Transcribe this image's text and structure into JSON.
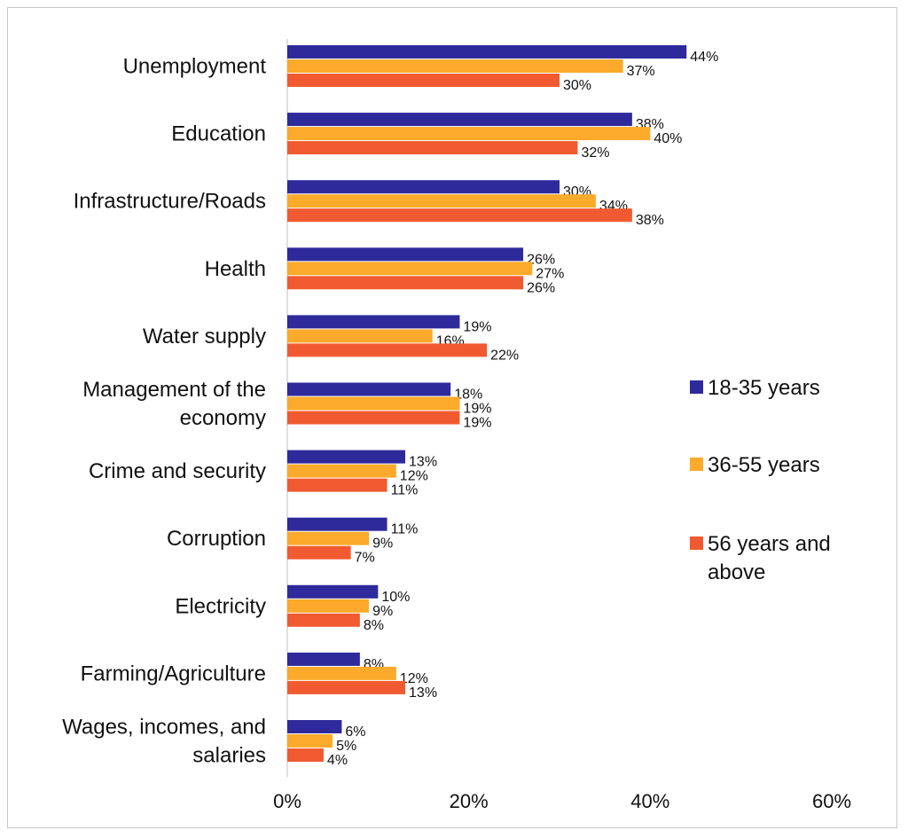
{
  "chart_data": {
    "type": "bar",
    "orientation": "horizontal",
    "title": "",
    "xlabel": "",
    "ylabel": "",
    "xlim": [
      0,
      60
    ],
    "x_ticks": [
      0,
      20,
      40,
      60
    ],
    "x_tick_labels": [
      "0%",
      "20%",
      "40%",
      "60%"
    ],
    "grid": false,
    "legend_position": "right",
    "categories": [
      "Unemployment",
      "Education",
      "Infrastructure/Roads",
      "Health",
      "Water supply",
      "Management of the economy",
      "Crime and security",
      "Corruption",
      "Electricity",
      "Farming/Agriculture",
      "Wages, incomes, and salaries"
    ],
    "category_lines": [
      [
        "Unemployment"
      ],
      [
        "Education"
      ],
      [
        "Infrastructure/Roads"
      ],
      [
        "Health"
      ],
      [
        "Water supply"
      ],
      [
        "Management of the",
        "economy"
      ],
      [
        "Crime and security"
      ],
      [
        "Corruption"
      ],
      [
        "Electricity"
      ],
      [
        "Farming/Agriculture"
      ],
      [
        "Wages, incomes, and",
        "salaries"
      ]
    ],
    "series": [
      {
        "name": "18-35 years",
        "legend_lines": [
          "18-35 years"
        ],
        "color": "#2e2a9c",
        "values": [
          44,
          38,
          30,
          26,
          19,
          18,
          13,
          11,
          10,
          8,
          6
        ],
        "labels": [
          "44%",
          "38%",
          "30%",
          "26%",
          "19%",
          "18%",
          "13%",
          "11%",
          "10%",
          "8%",
          "6%"
        ]
      },
      {
        "name": "36-55 years",
        "legend_lines": [
          "36-55 years"
        ],
        "color": "#fbaa2b",
        "values": [
          37,
          40,
          34,
          27,
          16,
          19,
          12,
          9,
          9,
          12,
          5
        ],
        "labels": [
          "37%",
          "40%",
          "34%",
          "27%",
          "16%",
          "19%",
          "12%",
          "9%",
          "9%",
          "12%",
          "5%"
        ]
      },
      {
        "name": "56 years and above",
        "legend_lines": [
          "56 years and",
          "above"
        ],
        "color": "#f15a30",
        "values": [
          30,
          32,
          38,
          26,
          22,
          19,
          11,
          7,
          8,
          13,
          4
        ],
        "labels": [
          "30%",
          "32%",
          "38%",
          "26%",
          "22%",
          "19%",
          "11%",
          "7%",
          "8%",
          "13%",
          "4%"
        ]
      }
    ]
  }
}
